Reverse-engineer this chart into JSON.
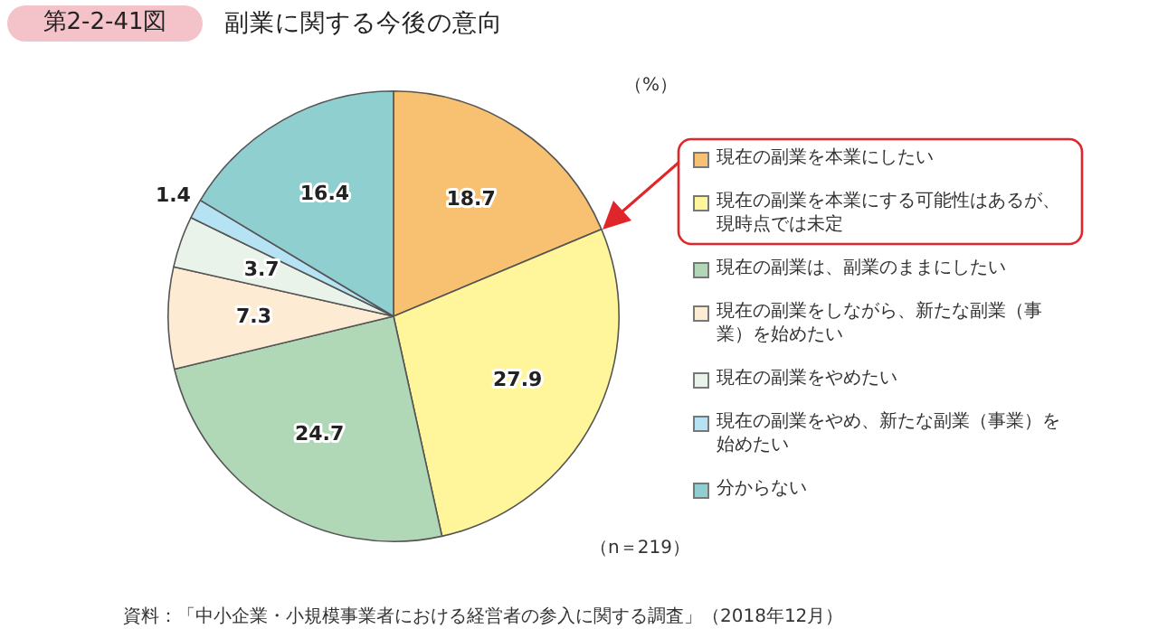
{
  "chart_data": {
    "type": "pie",
    "title": "副業に関する今後の意向",
    "categories": [
      "現在の副業を本業にしたい",
      "現在の副業を本業にする可能性はあるが、現時点では未定",
      "現在の副業は、副業のままにしたい",
      "現在の副業をしながら、新たな副業（事業）を始めたい",
      "現在の副業をやめたい",
      "現在の副業をやめ、新たな副業（事業）を始めたい",
      "分からない"
    ],
    "values": [
      18.7,
      27.9,
      24.7,
      7.3,
      3.7,
      1.4,
      16.4
    ],
    "colors": [
      "#f8c172",
      "#fff59b",
      "#b1d8b6",
      "#fdebd4",
      "#eaf3ea",
      "#b5e3f3",
      "#8fcfd0"
    ],
    "data_labels": true,
    "legend": "right",
    "annotations": [
      "第2-2-41図",
      "（%）",
      "（n＝219）",
      "資料：「中小企業・小規模事業者における経営者の参入に関する調査」（2018年12月）"
    ]
  }
}
